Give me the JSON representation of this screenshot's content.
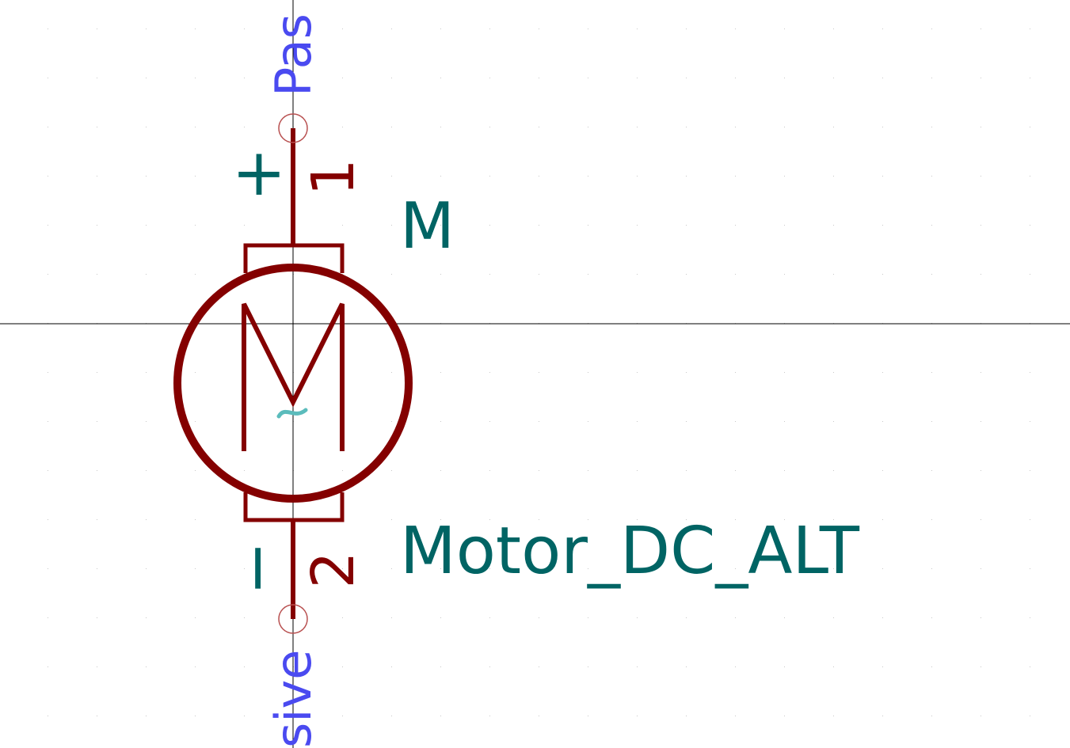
{
  "symbol": {
    "reference": "M",
    "value": "Motor_DC_ALT",
    "body_letter": "M",
    "ac_mark": "~",
    "pin1": {
      "number": "1",
      "polarity": "+",
      "electrical_type_upper": "Pas"
    },
    "pin2": {
      "number": "2",
      "polarity": "−",
      "electrical_type_lower": "sive"
    }
  },
  "colors": {
    "background": "#ffffff",
    "body": "#840000",
    "field_text": "#006464",
    "pin_type_text": "#4a4af0",
    "ac_mark": "#5bbcbc",
    "grid_dot": "#c8c8c8",
    "crosshair": "#000000",
    "pin_end_circle": "#b85050"
  }
}
